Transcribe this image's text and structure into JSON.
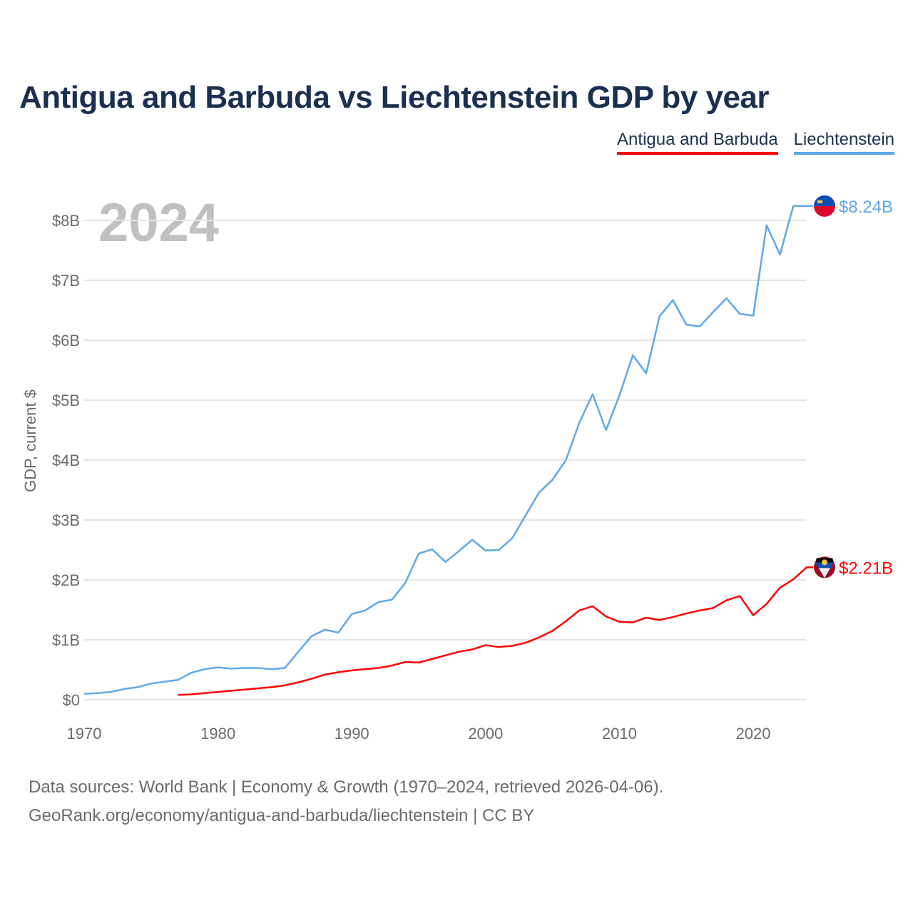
{
  "title": "Antigua and Barbuda vs Liechtenstein GDP by year",
  "year_label": "2024",
  "source_line1": "Data sources: World Bank | Economy & Growth (1970–2024, retrieved 2026-04-06).",
  "source_line2": "GeoRank.org/economy/antigua-and-barbuda/liechtenstein | CC BY",
  "chart_data": {
    "type": "line",
    "title": "Antigua and Barbuda vs Liechtenstein GDP by year",
    "xlabel": "",
    "ylabel": "GDP, current $",
    "xlim": [
      1970,
      2024
    ],
    "ylim": [
      0,
      8.24
    ],
    "x_ticks": [
      1970,
      1980,
      1990,
      2000,
      2010,
      2020
    ],
    "y_ticks": [
      0,
      1,
      2,
      3,
      4,
      5,
      6,
      7,
      8
    ],
    "y_tick_labels": [
      "$0",
      "$1B",
      "$2B",
      "$3B",
      "$4B",
      "$5B",
      "$6B",
      "$7B",
      "$8B"
    ],
    "grid": true,
    "legend_placement": "top-right",
    "units": "billions USD",
    "series": [
      {
        "name": "Antigua and Barbuda",
        "color": "#ff0000",
        "end_label": "$2.21B",
        "start_year": 1977,
        "values": [
          0.08,
          0.09,
          0.11,
          0.13,
          0.15,
          0.17,
          0.19,
          0.21,
          0.24,
          0.29,
          0.35,
          0.42,
          0.46,
          0.49,
          0.51,
          0.53,
          0.57,
          0.63,
          0.62,
          0.68,
          0.74,
          0.8,
          0.84,
          0.91,
          0.88,
          0.9,
          0.95,
          1.04,
          1.15,
          1.31,
          1.49,
          1.56,
          1.39,
          1.3,
          1.29,
          1.37,
          1.33,
          1.38,
          1.44,
          1.49,
          1.53,
          1.66,
          1.73,
          1.41,
          1.6,
          1.87,
          2.01,
          2.21
        ]
      },
      {
        "name": "Liechtenstein",
        "color": "#5ea8ec",
        "end_label": "$8.24B",
        "start_year": 1970,
        "values": [
          0.1,
          0.11,
          0.13,
          0.18,
          0.21,
          0.27,
          0.3,
          0.33,
          0.45,
          0.51,
          0.54,
          0.52,
          0.53,
          0.53,
          0.51,
          0.53,
          0.8,
          1.06,
          1.17,
          1.12,
          1.43,
          1.49,
          1.63,
          1.67,
          1.95,
          2.44,
          2.51,
          2.3,
          2.48,
          2.67,
          2.49,
          2.5,
          2.7,
          3.08,
          3.46,
          3.67,
          4.0,
          4.62,
          5.1,
          4.5,
          5.08,
          5.75,
          5.45,
          6.4,
          6.67,
          6.26,
          6.23,
          6.47,
          6.7,
          6.44,
          6.41,
          7.92,
          7.43,
          8.24,
          8.24
        ]
      }
    ]
  }
}
